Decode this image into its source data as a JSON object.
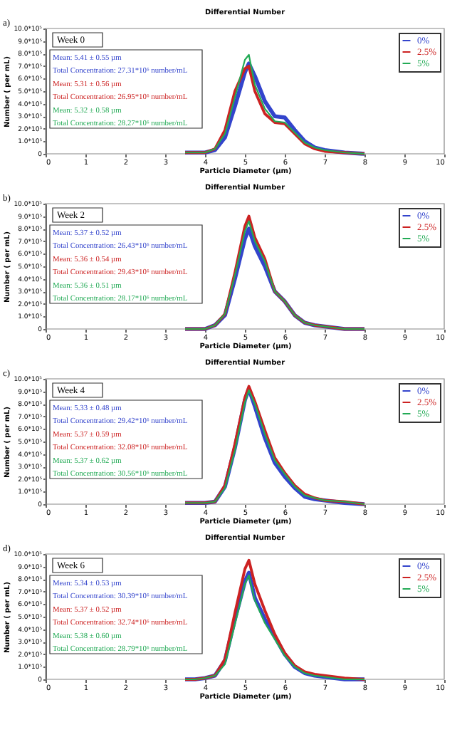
{
  "chart_data": [
    {
      "type": "line",
      "title": "Differential Number",
      "xlabel": "Particle Diameter (µm)",
      "ylabel": "Number ( per mL)",
      "xlim": [
        0,
        10
      ],
      "xticks": [
        0,
        1,
        2,
        3,
        4,
        5,
        6,
        7,
        8,
        9,
        10
      ],
      "ylim": [
        0,
        1000000
      ],
      "yticks": [
        {
          "value": 0,
          "label": "0"
        },
        {
          "value": 100000,
          "label": "1.0*10⁵"
        },
        {
          "value": 200000,
          "label": "2.0*10⁵"
        },
        {
          "value": 300000,
          "label": "3.0*10⁵"
        },
        {
          "value": 400000,
          "label": "4.0*10⁵"
        },
        {
          "value": 500000,
          "label": "5.0*10⁵"
        },
        {
          "value": 600000,
          "label": "6.0*10⁵"
        },
        {
          "value": 700000,
          "label": "7.0*10⁵"
        },
        {
          "value": 800000,
          "label": "8.0*10⁵"
        },
        {
          "value": 900000,
          "label": "9.0*10⁵"
        },
        {
          "value": 1000000,
          "label": "10.0*10⁵"
        }
      ],
      "legend": "top right",
      "x": [
        3.5,
        3.75,
        4,
        4.25,
        4.5,
        4.75,
        5,
        5.1,
        5.25,
        5.5,
        5.75,
        6,
        6.25,
        6.5,
        6.75,
        7,
        7.5,
        8
      ],
      "series": [
        {
          "name": "0%",
          "color": "#3344cc",
          "values": [
            10000,
            10000,
            10000,
            30000,
            130000,
            380000,
            650000,
            720000,
            620000,
            420000,
            300000,
            290000,
            190000,
            100000,
            50000,
            30000,
            10000,
            0
          ]
        },
        {
          "name": "2.5%",
          "color": "#cc2222",
          "values": [
            10000,
            10000,
            10000,
            40000,
            190000,
            500000,
            680000,
            700000,
            500000,
            320000,
            250000,
            240000,
            160000,
            80000,
            40000,
            20000,
            10000,
            0
          ]
        },
        {
          "name": "5%",
          "color": "#22aa55",
          "values": [
            10000,
            10000,
            10000,
            40000,
            160000,
            450000,
            750000,
            790000,
            550000,
            360000,
            260000,
            250000,
            170000,
            90000,
            50000,
            30000,
            10000,
            0
          ]
        }
      ],
      "annotations": [
        "a)",
        "Week 0",
        "Mean: 5.41 ± 0.55 µm",
        "Total Concentration: 27.31*10⁶ number/mL",
        "Mean: 5.31 ± 0.56 µm",
        "Total Concentration: 26.95*10⁶ number/mL",
        "Mean: 5.32 ± 0.58 µm",
        "Total Concentration: 28.27*10⁶ number/mL"
      ]
    },
    {
      "type": "line",
      "title": "Differential Number",
      "xlabel": "Particle Diameter (µm)",
      "ylabel": "Number ( per mL)",
      "xlim": [
        0,
        10
      ],
      "xticks": [
        0,
        1,
        2,
        3,
        4,
        5,
        6,
        7,
        8,
        9,
        10
      ],
      "ylim": [
        0,
        1000000
      ],
      "yticks": [
        {
          "value": 0,
          "label": "0"
        },
        {
          "value": 100000,
          "label": "1.0*10⁵"
        },
        {
          "value": 200000,
          "label": "2.0*10⁵"
        },
        {
          "value": 300000,
          "label": "3.0*10⁵"
        },
        {
          "value": 400000,
          "label": "4.0*10⁵"
        },
        {
          "value": 500000,
          "label": "5.0*10⁵"
        },
        {
          "value": 600000,
          "label": "6.0*10⁵"
        },
        {
          "value": 700000,
          "label": "7.0*10⁵"
        },
        {
          "value": 800000,
          "label": "8.0*10⁵"
        },
        {
          "value": 900000,
          "label": "9.0*10⁵"
        },
        {
          "value": 1000000,
          "label": "10.0*10⁵"
        }
      ],
      "legend": "top right",
      "x": [
        3.5,
        3.75,
        4,
        4.25,
        4.5,
        4.75,
        5,
        5.1,
        5.25,
        5.5,
        5.75,
        6,
        6.25,
        6.5,
        6.75,
        7,
        7.5,
        8
      ],
      "series": [
        {
          "name": "0%",
          "color": "#3344cc",
          "values": [
            0,
            0,
            0,
            30000,
            110000,
            400000,
            720000,
            800000,
            660000,
            500000,
            300000,
            220000,
            110000,
            50000,
            30000,
            20000,
            0,
            0
          ]
        },
        {
          "name": "2.5%",
          "color": "#cc2222",
          "values": [
            0,
            0,
            0,
            30000,
            120000,
            450000,
            820000,
            900000,
            730000,
            560000,
            300000,
            220000,
            110000,
            50000,
            30000,
            20000,
            0,
            0
          ]
        },
        {
          "name": "5%",
          "color": "#22aa55",
          "values": [
            0,
            0,
            0,
            30000,
            120000,
            430000,
            780000,
            860000,
            700000,
            540000,
            300000,
            220000,
            110000,
            50000,
            30000,
            20000,
            0,
            0
          ]
        }
      ],
      "annotations": [
        "b)",
        "Week 2",
        "Mean: 5.37 ± 0.52 µm",
        "Total Concentration: 26.43*10⁶ number/mL",
        "Mean: 5.36 ± 0.54 µm",
        "Total Concentration: 29.43*10⁶ number/mL",
        "Mean: 5.36 ± 0.51 µm",
        "Total Concentration: 28.17*10⁶ number/mL"
      ]
    },
    {
      "type": "line",
      "title": "Differential Number",
      "xlabel": "Particle Diameter (µm)",
      "ylabel": "Number ( per mL)",
      "xlim": [
        0,
        10
      ],
      "xticks": [
        0,
        1,
        2,
        3,
        4,
        5,
        6,
        7,
        8,
        9,
        10
      ],
      "ylim": [
        0,
        1000000
      ],
      "yticks": [
        {
          "value": 0,
          "label": "0"
        },
        {
          "value": 100000,
          "label": "1.0*10⁵"
        },
        {
          "value": 200000,
          "label": "2.0*10⁵"
        },
        {
          "value": 300000,
          "label": "3.0*10⁵"
        },
        {
          "value": 400000,
          "label": "4.0*10⁵"
        },
        {
          "value": 500000,
          "label": "5.0*10⁵"
        },
        {
          "value": 600000,
          "label": "6.0*10⁵"
        },
        {
          "value": 700000,
          "label": "7.0*10⁵"
        },
        {
          "value": 800000,
          "label": "8.0*10⁵"
        },
        {
          "value": 900000,
          "label": "9.0*10⁵"
        },
        {
          "value": 1000000,
          "label": "10.0*10⁵"
        }
      ],
      "legend": "top right",
      "x": [
        3.5,
        3.75,
        4,
        4.25,
        4.5,
        4.75,
        5,
        5.1,
        5.25,
        5.5,
        5.75,
        6,
        6.25,
        6.5,
        6.75,
        7,
        7.5,
        8
      ],
      "series": [
        {
          "name": "0%",
          "color": "#3344cc",
          "values": [
            10000,
            10000,
            10000,
            20000,
            140000,
            450000,
            830000,
            920000,
            780000,
            530000,
            330000,
            220000,
            130000,
            60000,
            40000,
            30000,
            10000,
            0
          ]
        },
        {
          "name": "2.5%",
          "color": "#cc2222",
          "values": [
            10000,
            10000,
            10000,
            20000,
            150000,
            480000,
            850000,
            940000,
            820000,
            590000,
            370000,
            250000,
            150000,
            80000,
            50000,
            30000,
            20000,
            0
          ]
        },
        {
          "name": "5%",
          "color": "#22aa55",
          "values": [
            10000,
            10000,
            10000,
            20000,
            130000,
            430000,
            810000,
            910000,
            800000,
            560000,
            350000,
            240000,
            140000,
            70000,
            50000,
            30000,
            20000,
            0
          ]
        }
      ],
      "annotations": [
        "c)",
        "Week 4",
        "Mean: 5.33 ± 0.48 µm",
        "Total Concentration: 29.42*10⁶ number/mL",
        "Mean: 5.37 ± 0.59 µm",
        "Total Concentration: 32.08*10⁶ number/mL",
        "Mean: 5.37 ± 0.62 µm",
        "Total Concentration: 30.56*10⁶ number/mL"
      ]
    },
    {
      "type": "line",
      "title": "Differential Number",
      "xlabel": "Particle Diameter (µm)",
      "ylabel": "Number ( per mL)",
      "xlim": [
        0,
        10
      ],
      "xticks": [
        0,
        1,
        2,
        3,
        4,
        5,
        6,
        7,
        8,
        9,
        10
      ],
      "ylim": [
        0,
        1000000
      ],
      "yticks": [
        {
          "value": 0,
          "label": "0"
        },
        {
          "value": 100000,
          "label": "1.0*10⁵"
        },
        {
          "value": 200000,
          "label": "2.0*10⁵"
        },
        {
          "value": 300000,
          "label": "3.0*10⁵"
        },
        {
          "value": 400000,
          "label": "4.0*10⁵"
        },
        {
          "value": 500000,
          "label": "5.0*10⁵"
        },
        {
          "value": 600000,
          "label": "6.0*10⁵"
        },
        {
          "value": 700000,
          "label": "7.0*10⁵"
        },
        {
          "value": 800000,
          "label": "8.0*10⁵"
        },
        {
          "value": 900000,
          "label": "9.0*10⁵"
        },
        {
          "value": 1000000,
          "label": "10.0*10⁵"
        }
      ],
      "legend": "top right",
      "x": [
        3.5,
        3.75,
        4,
        4.25,
        4.5,
        4.75,
        5,
        5.1,
        5.25,
        5.5,
        5.75,
        6,
        6.25,
        6.5,
        6.75,
        7,
        7.5,
        8
      ],
      "series": [
        {
          "name": "0%",
          "color": "#3344cc",
          "values": [
            0,
            0,
            10000,
            30000,
            150000,
            480000,
            780000,
            850000,
            650000,
            480000,
            340000,
            200000,
            100000,
            50000,
            30000,
            20000,
            0,
            0
          ]
        },
        {
          "name": "2.5%",
          "color": "#cc2222",
          "values": [
            0,
            0,
            10000,
            30000,
            160000,
            530000,
            880000,
            950000,
            760000,
            550000,
            360000,
            210000,
            110000,
            60000,
            40000,
            30000,
            10000,
            0
          ]
        },
        {
          "name": "5%",
          "color": "#22aa55",
          "values": [
            0,
            0,
            10000,
            30000,
            120000,
            440000,
            760000,
            830000,
            630000,
            450000,
            320000,
            190000,
            100000,
            50000,
            30000,
            20000,
            0,
            0
          ]
        }
      ],
      "annotations": [
        "d)",
        "Week 6",
        "Mean: 5.34 ± 0.53 µm",
        "Total Concentration: 30.39*10⁶ number/mL",
        "Mean: 5.37 ± 0.52 µm",
        "Total Concentration: 32.74*10⁶ number/mL",
        "Mean: 5.38 ± 0.60 µm",
        "Total Concentration: 28.79*10⁶ number/mL"
      ]
    }
  ]
}
